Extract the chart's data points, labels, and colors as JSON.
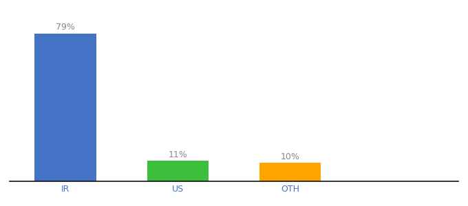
{
  "categories": [
    "IR",
    "US",
    "OTH"
  ],
  "values": [
    79,
    11,
    10
  ],
  "bar_colors": [
    "#4472C4",
    "#3DBE3D",
    "#FFA500"
  ],
  "labels": [
    "79%",
    "11%",
    "10%"
  ],
  "label_color": "#888888",
  "xlabel_color": "#4472C4",
  "background_color": "#ffffff",
  "ylim": [
    0,
    88
  ],
  "bar_width": 0.55,
  "label_fontsize": 9,
  "xlabel_fontsize": 9,
  "bar_positions": [
    0,
    1,
    2
  ]
}
